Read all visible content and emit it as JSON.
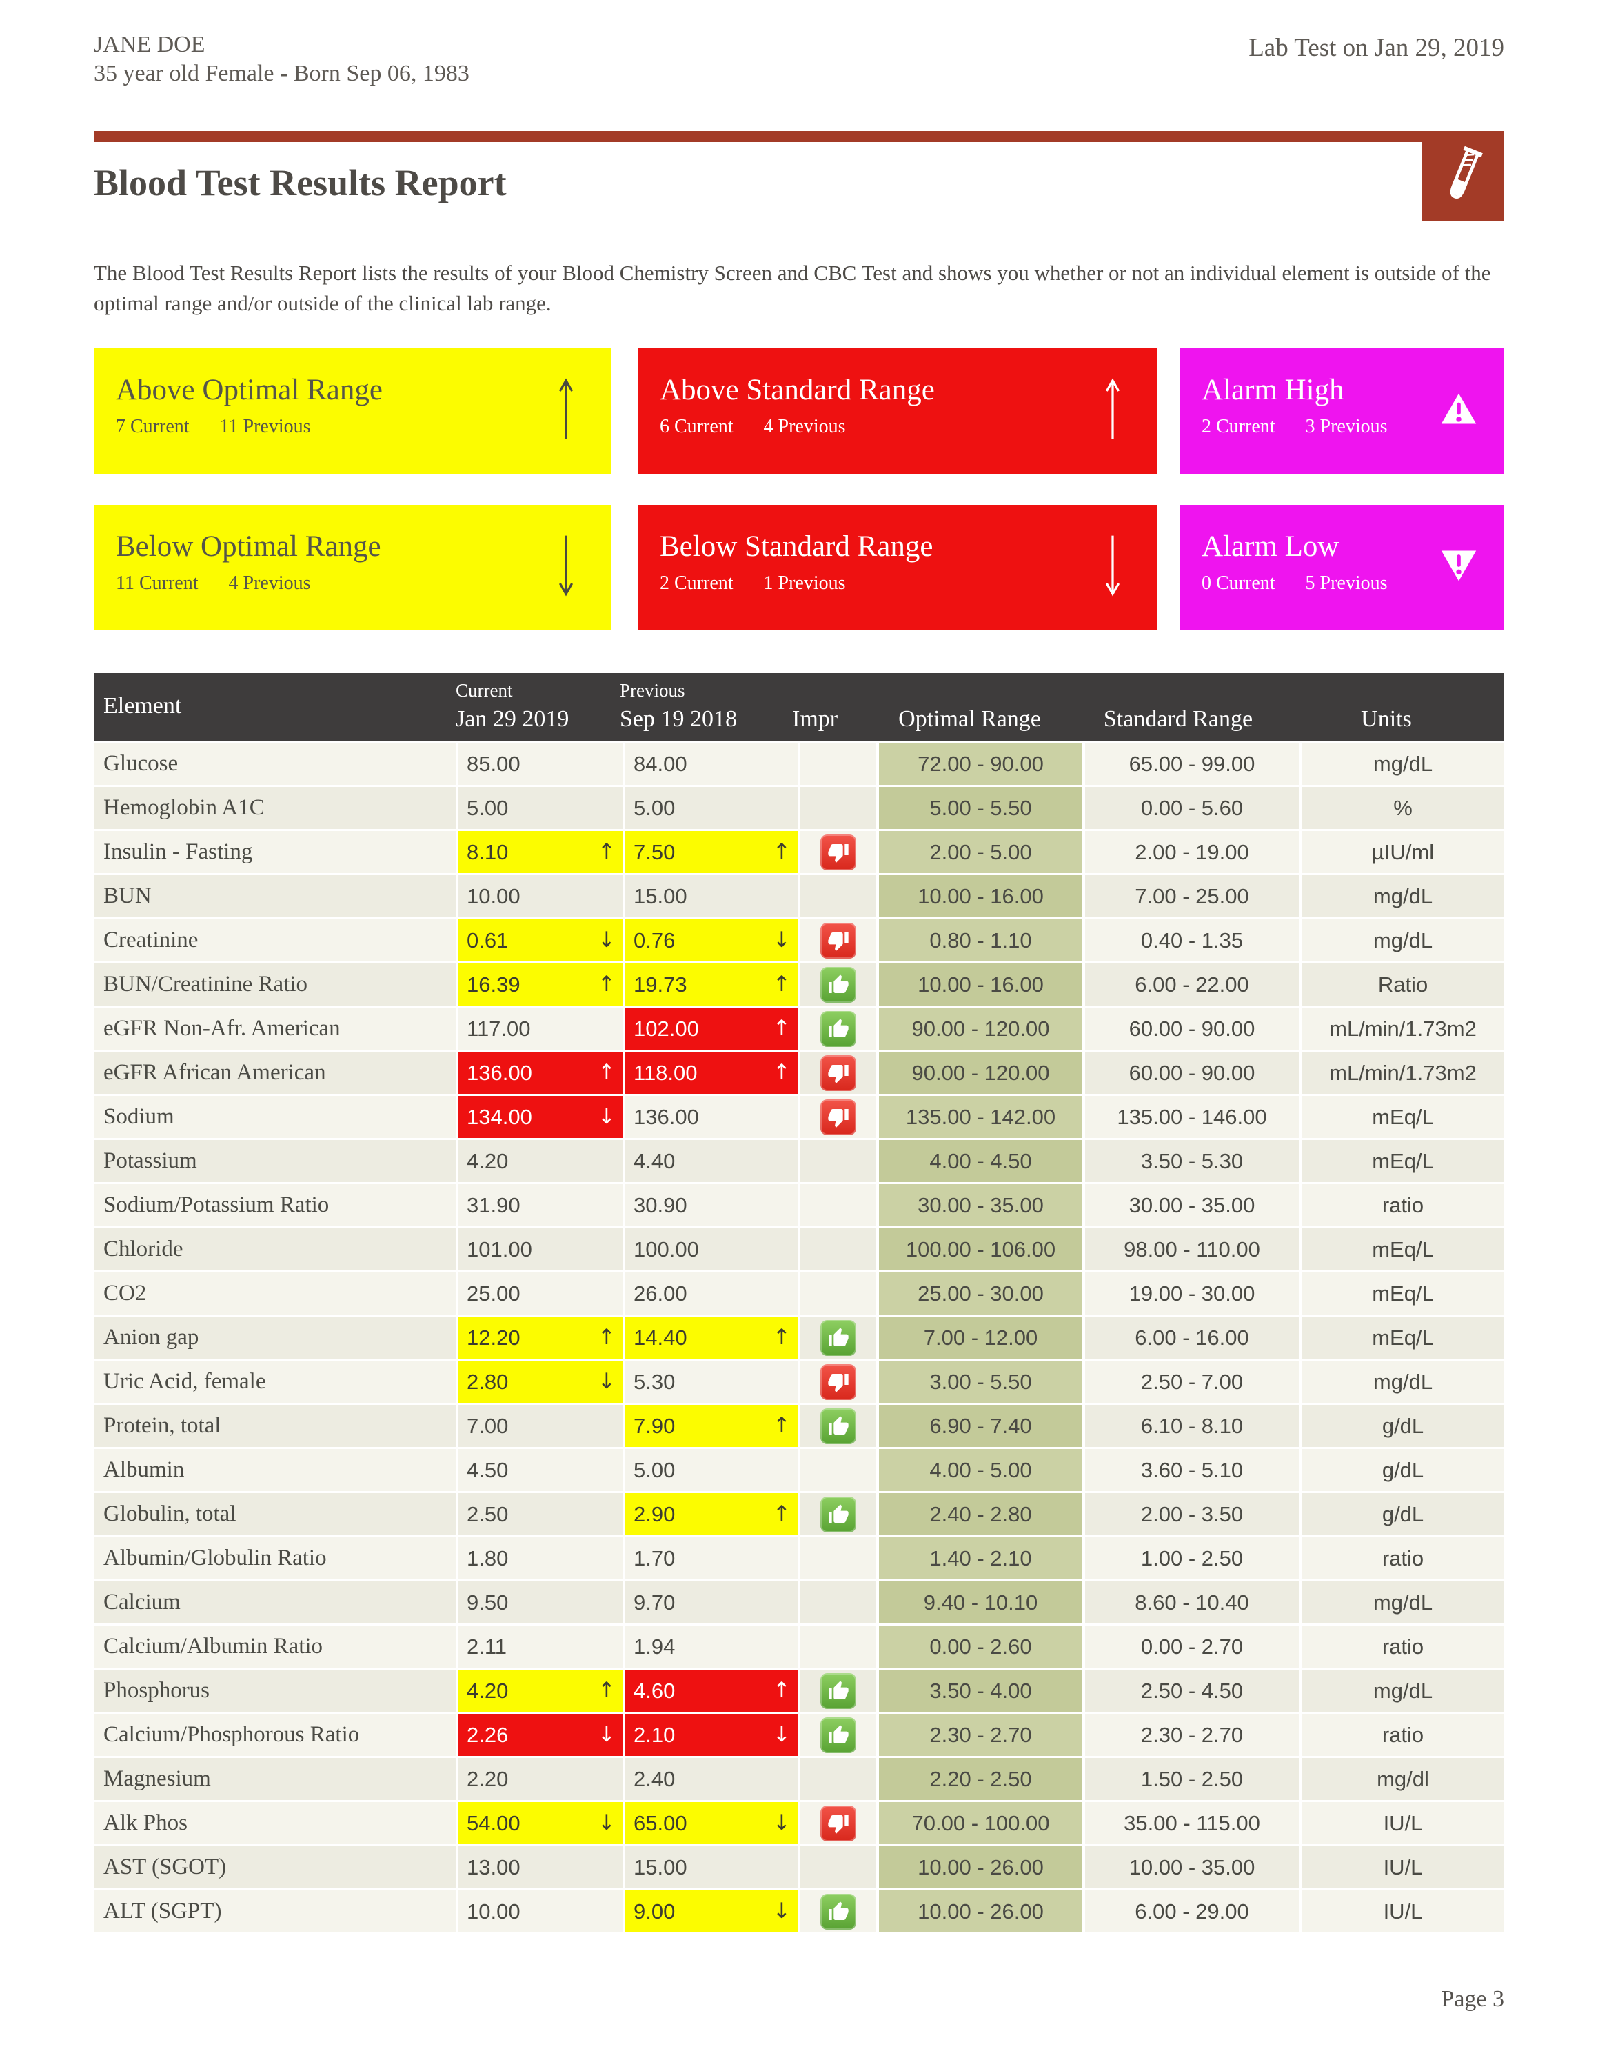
{
  "header": {
    "patient_name": "JANE DOE",
    "patient_details": "35 year old Female - Born Sep 06, 1983",
    "lab_test_label": "Lab Test on Jan 29, 2019"
  },
  "report": {
    "title": "Blood Test Results Report",
    "description": "The Blood Test Results Report lists the results of your Blood Chemistry Screen and CBC Test and shows you whether or not an individual element is outside of the optimal range and/or outside of the clinical lab range."
  },
  "colors": {
    "accent_brick": "#a33b27",
    "box_yellow": "#fcfc00",
    "box_red": "#ee1111",
    "box_magenta": "#ef14ef",
    "table_header_bg": "#3e3c3c",
    "optimal_column_green": "#cbd1a4",
    "thumb_up_green": "#6cb845",
    "thumb_down_red": "#e2362b"
  },
  "summary_boxes": [
    {
      "title": "Above Optimal Range",
      "current": "7 Current",
      "previous": "11 Previous",
      "icon": "up-arrow",
      "style": "yellow"
    },
    {
      "title": "Above Standard Range",
      "current": "6 Current",
      "previous": "4 Previous",
      "icon": "up-arrow",
      "style": "red"
    },
    {
      "title": "Alarm High",
      "current": "2 Current",
      "previous": "3 Previous",
      "icon": "warning-high",
      "style": "magenta"
    },
    {
      "title": "Below Optimal Range",
      "current": "11 Current",
      "previous": "4 Previous",
      "icon": "down-arrow",
      "style": "yellow"
    },
    {
      "title": "Below Standard Range",
      "current": "2 Current",
      "previous": "1 Previous",
      "icon": "down-arrow",
      "style": "red"
    },
    {
      "title": "Alarm Low",
      "current": "0 Current",
      "previous": "5 Previous",
      "icon": "warning-low",
      "style": "magenta"
    }
  ],
  "table": {
    "headers": {
      "element": "Element",
      "current_label": "Current",
      "current_date": "Jan 29 2019",
      "previous_label": "Previous",
      "previous_date": "Sep 19 2018",
      "impr": "Impr",
      "optimal": "Optimal Range",
      "standard": "Standard Range",
      "units": "Units"
    },
    "rows": [
      {
        "element": "Glucose",
        "current": {
          "value": "85.00",
          "highlight": "",
          "arrow": ""
        },
        "previous": {
          "value": "84.00",
          "highlight": "",
          "arrow": ""
        },
        "impr": "",
        "optimal": "72.00 - 90.00",
        "standard": "65.00 - 99.00",
        "units": "mg/dL"
      },
      {
        "element": "Hemoglobin A1C",
        "current": {
          "value": "5.00",
          "highlight": "",
          "arrow": ""
        },
        "previous": {
          "value": "5.00",
          "highlight": "",
          "arrow": ""
        },
        "impr": "",
        "optimal": "5.00 - 5.50",
        "standard": "0.00 - 5.60",
        "units": "%"
      },
      {
        "element": "Insulin - Fasting",
        "current": {
          "value": "8.10",
          "highlight": "yellow",
          "arrow": "up"
        },
        "previous": {
          "value": "7.50",
          "highlight": "yellow",
          "arrow": "up"
        },
        "impr": "thumbs-down",
        "optimal": "2.00 - 5.00",
        "standard": "2.00 - 19.00",
        "units": "µIU/ml"
      },
      {
        "element": "BUN",
        "current": {
          "value": "10.00",
          "highlight": "",
          "arrow": ""
        },
        "previous": {
          "value": "15.00",
          "highlight": "",
          "arrow": ""
        },
        "impr": "",
        "optimal": "10.00 - 16.00",
        "standard": "7.00 - 25.00",
        "units": "mg/dL"
      },
      {
        "element": "Creatinine",
        "current": {
          "value": "0.61",
          "highlight": "yellow",
          "arrow": "down"
        },
        "previous": {
          "value": "0.76",
          "highlight": "yellow",
          "arrow": "down"
        },
        "impr": "thumbs-down",
        "optimal": "0.80 - 1.10",
        "standard": "0.40 - 1.35",
        "units": "mg/dL"
      },
      {
        "element": "BUN/Creatinine Ratio",
        "current": {
          "value": "16.39",
          "highlight": "yellow",
          "arrow": "up"
        },
        "previous": {
          "value": "19.73",
          "highlight": "yellow",
          "arrow": "up"
        },
        "impr": "thumbs-up",
        "optimal": "10.00 - 16.00",
        "standard": "6.00 - 22.00",
        "units": "Ratio"
      },
      {
        "element": "eGFR Non-Afr. American",
        "current": {
          "value": "117.00",
          "highlight": "",
          "arrow": ""
        },
        "previous": {
          "value": "102.00",
          "highlight": "red",
          "arrow": "up"
        },
        "impr": "thumbs-up",
        "optimal": "90.00 - 120.00",
        "standard": "60.00 - 90.00",
        "units": "mL/min/1.73m2"
      },
      {
        "element": "eGFR African American",
        "current": {
          "value": "136.00",
          "highlight": "red",
          "arrow": "up"
        },
        "previous": {
          "value": "118.00",
          "highlight": "red",
          "arrow": "up"
        },
        "impr": "thumbs-down",
        "optimal": "90.00 - 120.00",
        "standard": "60.00 - 90.00",
        "units": "mL/min/1.73m2"
      },
      {
        "element": "Sodium",
        "current": {
          "value": "134.00",
          "highlight": "red",
          "arrow": "down"
        },
        "previous": {
          "value": "136.00",
          "highlight": "",
          "arrow": ""
        },
        "impr": "thumbs-down",
        "optimal": "135.00 - 142.00",
        "standard": "135.00 - 146.00",
        "units": "mEq/L"
      },
      {
        "element": "Potassium",
        "current": {
          "value": "4.20",
          "highlight": "",
          "arrow": ""
        },
        "previous": {
          "value": "4.40",
          "highlight": "",
          "arrow": ""
        },
        "impr": "",
        "optimal": "4.00 - 4.50",
        "standard": "3.50 - 5.30",
        "units": "mEq/L"
      },
      {
        "element": "Sodium/Potassium Ratio",
        "current": {
          "value": "31.90",
          "highlight": "",
          "arrow": ""
        },
        "previous": {
          "value": "30.90",
          "highlight": "",
          "arrow": ""
        },
        "impr": "",
        "optimal": "30.00 - 35.00",
        "standard": "30.00 - 35.00",
        "units": "ratio"
      },
      {
        "element": "Chloride",
        "current": {
          "value": "101.00",
          "highlight": "",
          "arrow": ""
        },
        "previous": {
          "value": "100.00",
          "highlight": "",
          "arrow": ""
        },
        "impr": "",
        "optimal": "100.00 - 106.00",
        "standard": "98.00 - 110.00",
        "units": "mEq/L"
      },
      {
        "element": "CO2",
        "current": {
          "value": "25.00",
          "highlight": "",
          "arrow": ""
        },
        "previous": {
          "value": "26.00",
          "highlight": "",
          "arrow": ""
        },
        "impr": "",
        "optimal": "25.00 - 30.00",
        "standard": "19.00 - 30.00",
        "units": "mEq/L"
      },
      {
        "element": "Anion gap",
        "current": {
          "value": "12.20",
          "highlight": "yellow",
          "arrow": "up"
        },
        "previous": {
          "value": "14.40",
          "highlight": "yellow",
          "arrow": "up"
        },
        "impr": "thumbs-up",
        "optimal": "7.00 - 12.00",
        "standard": "6.00 - 16.00",
        "units": "mEq/L"
      },
      {
        "element": "Uric Acid, female",
        "current": {
          "value": "2.80",
          "highlight": "yellow",
          "arrow": "down"
        },
        "previous": {
          "value": "5.30",
          "highlight": "",
          "arrow": ""
        },
        "impr": "thumbs-down",
        "optimal": "3.00 - 5.50",
        "standard": "2.50 - 7.00",
        "units": "mg/dL"
      },
      {
        "element": "Protein, total",
        "current": {
          "value": "7.00",
          "highlight": "",
          "arrow": ""
        },
        "previous": {
          "value": "7.90",
          "highlight": "yellow",
          "arrow": "up"
        },
        "impr": "thumbs-up",
        "optimal": "6.90 - 7.40",
        "standard": "6.10 - 8.10",
        "units": "g/dL"
      },
      {
        "element": "Albumin",
        "current": {
          "value": "4.50",
          "highlight": "",
          "arrow": ""
        },
        "previous": {
          "value": "5.00",
          "highlight": "",
          "arrow": ""
        },
        "impr": "",
        "optimal": "4.00 - 5.00",
        "standard": "3.60 - 5.10",
        "units": "g/dL"
      },
      {
        "element": "Globulin, total",
        "current": {
          "value": "2.50",
          "highlight": "",
          "arrow": ""
        },
        "previous": {
          "value": "2.90",
          "highlight": "yellow",
          "arrow": "up"
        },
        "impr": "thumbs-up",
        "optimal": "2.40 - 2.80",
        "standard": "2.00 - 3.50",
        "units": "g/dL"
      },
      {
        "element": "Albumin/Globulin Ratio",
        "current": {
          "value": "1.80",
          "highlight": "",
          "arrow": ""
        },
        "previous": {
          "value": "1.70",
          "highlight": "",
          "arrow": ""
        },
        "impr": "",
        "optimal": "1.40 - 2.10",
        "standard": "1.00 - 2.50",
        "units": "ratio"
      },
      {
        "element": "Calcium",
        "current": {
          "value": "9.50",
          "highlight": "",
          "arrow": ""
        },
        "previous": {
          "value": "9.70",
          "highlight": "",
          "arrow": ""
        },
        "impr": "",
        "optimal": "9.40 - 10.10",
        "standard": "8.60 - 10.40",
        "units": "mg/dL"
      },
      {
        "element": "Calcium/Albumin Ratio",
        "current": {
          "value": "2.11",
          "highlight": "",
          "arrow": ""
        },
        "previous": {
          "value": "1.94",
          "highlight": "",
          "arrow": ""
        },
        "impr": "",
        "optimal": "0.00 - 2.60",
        "standard": "0.00 - 2.70",
        "units": "ratio"
      },
      {
        "element": "Phosphorus",
        "current": {
          "value": "4.20",
          "highlight": "yellow",
          "arrow": "up"
        },
        "previous": {
          "value": "4.60",
          "highlight": "red",
          "arrow": "up"
        },
        "impr": "thumbs-up",
        "optimal": "3.50 - 4.00",
        "standard": "2.50 - 4.50",
        "units": "mg/dL"
      },
      {
        "element": "Calcium/Phosphorous Ratio",
        "current": {
          "value": "2.26",
          "highlight": "red",
          "arrow": "down"
        },
        "previous": {
          "value": "2.10",
          "highlight": "red",
          "arrow": "down"
        },
        "impr": "thumbs-up",
        "optimal": "2.30 - 2.70",
        "standard": "2.30 - 2.70",
        "units": "ratio"
      },
      {
        "element": "Magnesium",
        "current": {
          "value": "2.20",
          "highlight": "",
          "arrow": ""
        },
        "previous": {
          "value": "2.40",
          "highlight": "",
          "arrow": ""
        },
        "impr": "",
        "optimal": "2.20 - 2.50",
        "standard": "1.50 - 2.50",
        "units": "mg/dl"
      },
      {
        "element": "Alk Phos",
        "current": {
          "value": "54.00",
          "highlight": "yellow",
          "arrow": "down"
        },
        "previous": {
          "value": "65.00",
          "highlight": "yellow",
          "arrow": "down"
        },
        "impr": "thumbs-down",
        "optimal": "70.00 - 100.00",
        "standard": "35.00 - 115.00",
        "units": "IU/L"
      },
      {
        "element": "AST (SGOT)",
        "current": {
          "value": "13.00",
          "highlight": "",
          "arrow": ""
        },
        "previous": {
          "value": "15.00",
          "highlight": "",
          "arrow": ""
        },
        "impr": "",
        "optimal": "10.00 - 26.00",
        "standard": "10.00 - 35.00",
        "units": "IU/L"
      },
      {
        "element": "ALT (SGPT)",
        "current": {
          "value": "10.00",
          "highlight": "",
          "arrow": ""
        },
        "previous": {
          "value": "9.00",
          "highlight": "yellow",
          "arrow": "down"
        },
        "impr": "thumbs-up",
        "optimal": "10.00 - 26.00",
        "standard": "6.00 - 29.00",
        "units": "IU/L"
      }
    ]
  },
  "footer": {
    "page": "Page 3"
  }
}
